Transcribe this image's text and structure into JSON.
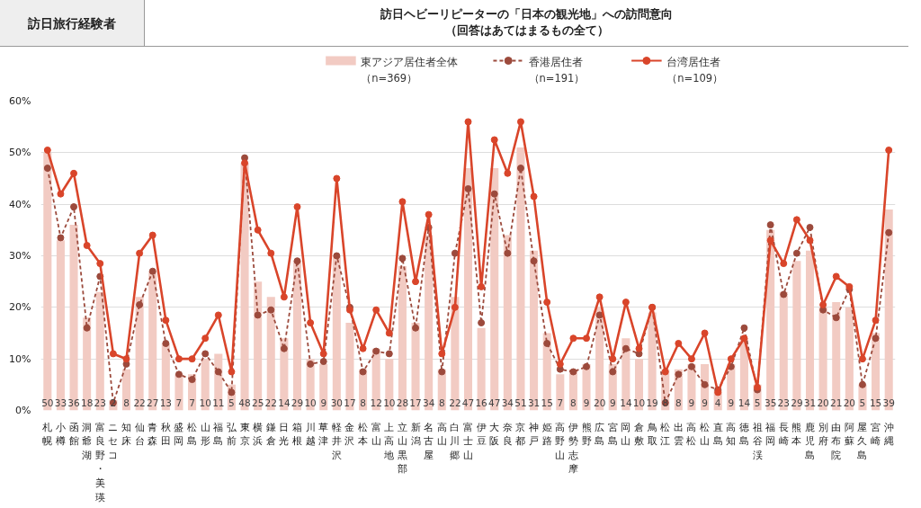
{
  "chart_data": {
    "type": "bar",
    "title": "訪日ヘビーリピーターの「日本の観光地」への訪問意向",
    "subtitle": "（回答はあてはまるもの全て）",
    "annotations": [
      "訪日旅行経験者"
    ],
    "categories": [
      "札幌",
      "小樽",
      "函館",
      "洞爺湖",
      "富良野・美瑛",
      "ニセコ",
      "知床",
      "仙台",
      "青森",
      "秋田",
      "盛岡",
      "松島",
      "山形",
      "福島",
      "弘前",
      "東京",
      "横浜",
      "鎌倉",
      "日光",
      "箱根",
      "川越",
      "草津",
      "軽井沢",
      "金沢",
      "松本",
      "富山",
      "上高地",
      "立山黒部",
      "新潟",
      "名古屋",
      "高山",
      "白川郷",
      "富士山",
      "伊豆",
      "大阪",
      "奈良",
      "京都",
      "神戸",
      "姫路",
      "高野山",
      "伊勢志摩",
      "熊野",
      "広島",
      "宮島",
      "岡山",
      "倉敷",
      "鳥取",
      "松江",
      "出雲",
      "高松",
      "松山",
      "直島",
      "高知",
      "徳島",
      "祖谷渓",
      "福岡",
      "長崎",
      "熊本",
      "鹿児島",
      "別府",
      "由布院",
      "阿蘇",
      "屋久島",
      "宮崎",
      "沖縄"
    ],
    "series": [
      {
        "name": "東アジア居住者全体（n=369）",
        "color": "#f2cbc3",
        "values": [
          50,
          33,
          36,
          18,
          23,
          2,
          8,
          22,
          27,
          13,
          7,
          7,
          10,
          11,
          5,
          48,
          25,
          22,
          14,
          29,
          10,
          9,
          30,
          17,
          8,
          12,
          10,
          28,
          17,
          34,
          8,
          22,
          47,
          16,
          47,
          34,
          51,
          31,
          15,
          7,
          8,
          9,
          20,
          9,
          14,
          10,
          19,
          8,
          8,
          9,
          9,
          4,
          9,
          14,
          5,
          35,
          23,
          29,
          31,
          20,
          21,
          20,
          5,
          15,
          39
        ],
        "value_labels": [
          "50",
          "33",
          "36",
          "18",
          "23",
          "2",
          "8",
          "22",
          "27",
          "13",
          "7",
          "7",
          "10",
          "11",
          "5",
          "48",
          "25",
          "22",
          "14",
          "29",
          "10",
          "9",
          "30",
          "17",
          "8",
          "12",
          "10",
          "28",
          "17",
          "34",
          "8",
          "22",
          "47",
          "16",
          "47",
          "34",
          "51",
          "31",
          "15",
          "7",
          "8",
          "9",
          "20",
          "9",
          "14",
          "10",
          "19",
          "8",
          "8",
          "9",
          "9",
          "4",
          "9",
          "14",
          "5",
          "35",
          "23",
          "29",
          "31",
          "20",
          "21",
          "20",
          "5",
          "15",
          "39"
        ]
      },
      {
        "name": "香港居住者（n=191）",
        "type": "line",
        "color": "#9c4a3c",
        "line_style": "dashed",
        "marker": "circle",
        "values": [
          47,
          33.5,
          39.5,
          16,
          26,
          1.5,
          9,
          20.5,
          27,
          13,
          7,
          6,
          11,
          7.5,
          3.5,
          49,
          18.5,
          19.5,
          12,
          29,
          9,
          9.5,
          30,
          20,
          7.5,
          11.5,
          11,
          29.5,
          16,
          35.5,
          7.5,
          30.5,
          43,
          17,
          42,
          30.5,
          47,
          29,
          13,
          8,
          7.5,
          8.5,
          18.5,
          7.5,
          12,
          11,
          20,
          1.5,
          7,
          8.5,
          5,
          4,
          8.5,
          16,
          4,
          36,
          22.5,
          30.5,
          35.5,
          19.5,
          18,
          23.5,
          5,
          14,
          34.5
        ]
      },
      {
        "name": "台湾居住者（n=109）",
        "type": "line",
        "color": "#d9452a",
        "line_style": "solid",
        "marker": "circle",
        "values": [
          50.5,
          42,
          46,
          32,
          28.5,
          11,
          10,
          30.5,
          34,
          17.5,
          10,
          10,
          14,
          18.5,
          7.5,
          48,
          35,
          30.5,
          22,
          39.5,
          17,
          11,
          45,
          19.5,
          12,
          19.5,
          15,
          40.5,
          25,
          38,
          11,
          20,
          56,
          24,
          52.5,
          46,
          56,
          41.5,
          21,
          9,
          14,
          14,
          22,
          10,
          21,
          12,
          20,
          7.5,
          13,
          10,
          15,
          3.5,
          10,
          14,
          4.5,
          33,
          28.5,
          37,
          33,
          20.5,
          26,
          24,
          10,
          17.5,
          50.5
        ]
      }
    ],
    "ylim": [
      0,
      60
    ],
    "yticks": [
      {
        "value": 0,
        "label": "0%"
      },
      {
        "value": 10,
        "label": "10%"
      },
      {
        "value": 20,
        "label": "20%"
      },
      {
        "value": 30,
        "label": "30%"
      },
      {
        "value": 40,
        "label": "40%"
      },
      {
        "value": 50,
        "label": "50%"
      },
      {
        "value": 60,
        "label": "60%"
      }
    ],
    "grid": "y",
    "legend": "top"
  }
}
